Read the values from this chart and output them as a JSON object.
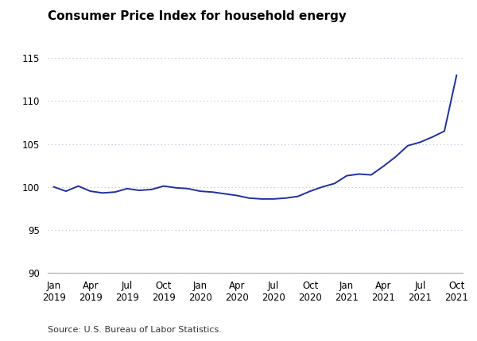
{
  "title": "Consumer Price Index for household energy",
  "source": "Source: U.S. Bureau of Labor Statistics.",
  "line_color": "#1f2f9e",
  "line_width": 1.4,
  "background_color": "#ffffff",
  "ylim": [
    90,
    117
  ],
  "yticks": [
    90,
    95,
    100,
    105,
    110,
    115
  ],
  "grid_color": "#aabfd4",
  "tick_labels": [
    "Jan\n2019",
    "Apr\n2019",
    "Jul\n2019",
    "Oct\n2019",
    "Jan\n2020",
    "Apr\n2020",
    "Jul\n2020",
    "Oct\n2020",
    "Jan\n2021",
    "Apr\n2021",
    "Jul\n2021",
    "Oct\n2021"
  ],
  "cpi_values": [
    100.0,
    99.5,
    100.1,
    99.5,
    99.3,
    99.4,
    99.8,
    99.6,
    99.7,
    100.1,
    99.9,
    99.8,
    99.5,
    99.4,
    99.2,
    99.0,
    98.7,
    98.6,
    98.6,
    98.7,
    98.9,
    99.5,
    100.0,
    100.4,
    101.3,
    101.5,
    101.4,
    102.4,
    103.5,
    104.8,
    105.2,
    105.8,
    106.5,
    113.0
  ],
  "tick_positions": [
    0,
    3,
    6,
    9,
    12,
    15,
    18,
    21,
    24,
    27,
    30,
    33
  ],
  "figsize": [
    6.0,
    4.3
  ],
  "dpi": 100,
  "title_fontsize": 11,
  "axis_fontsize": 8.5,
  "source_fontsize": 8
}
